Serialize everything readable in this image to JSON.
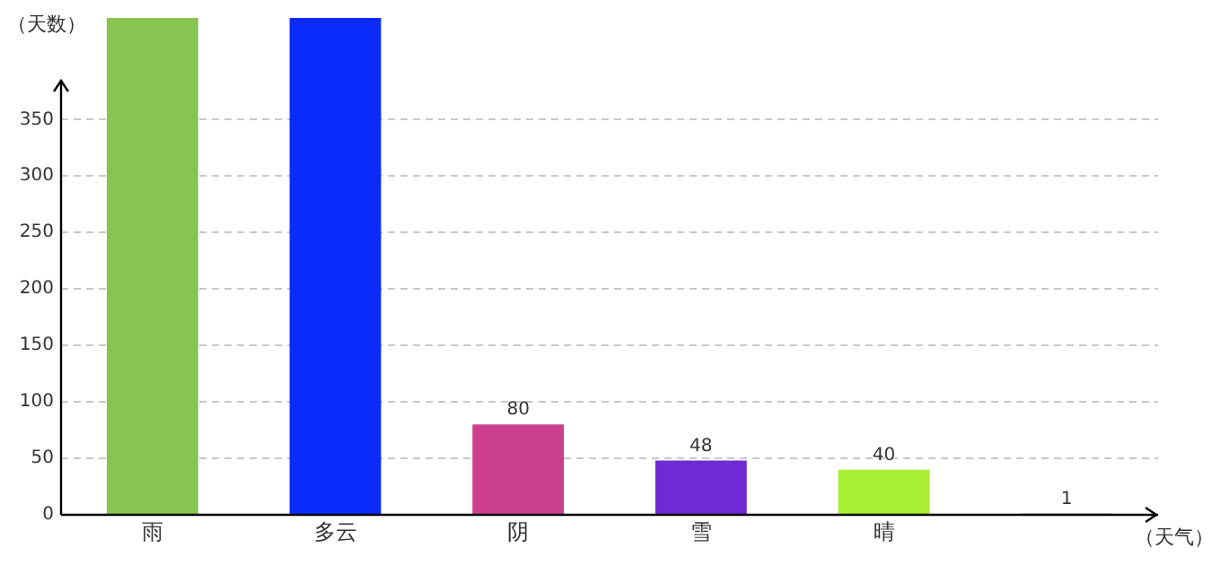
{
  "chart_data": {
    "type": "bar",
    "xlabel": "（天气）",
    "ylabel": "（天数）",
    "categories": [
      "雨",
      "多云",
      "阴",
      "雪",
      "晴",
      null
    ],
    "values": [
      440,
      440,
      80,
      48,
      40,
      1
    ],
    "colors": [
      "#86c550",
      "#0b2bfb",
      "#cc3f8c",
      "#6f2ad4",
      "#a8ee33",
      "#8b1a6b"
    ],
    "value_labels": [
      null,
      null,
      "80",
      "48",
      "40",
      "1"
    ],
    "ylim": [
      0,
      440
    ],
    "yticks": [
      0,
      50,
      100,
      150,
      200,
      250,
      300,
      350
    ],
    "grid": "y",
    "legend": false
  }
}
